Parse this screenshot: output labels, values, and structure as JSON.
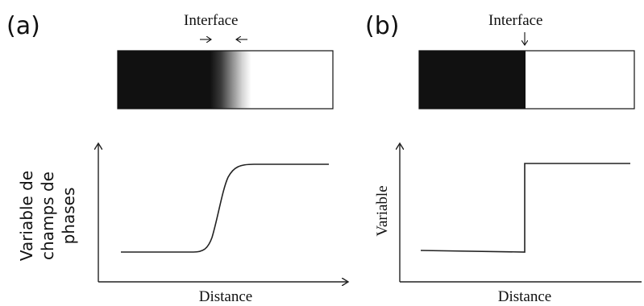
{
  "panel_a": {
    "letter": "(a)",
    "interface_label": "Interface",
    "y_axis_label_lines": [
      "Variable de",
      "champs de",
      "phases"
    ],
    "x_axis_label": "Distance",
    "interface_type": "diffuse"
  },
  "panel_b": {
    "letter": "(b)",
    "interface_label": "Interface",
    "y_axis_label": "Variable",
    "x_axis_label": "Distance",
    "interface_type": "sharp"
  },
  "colors": {
    "dark_phase": "#111111",
    "light_phase": "#ffffff",
    "axis": "#222222"
  }
}
